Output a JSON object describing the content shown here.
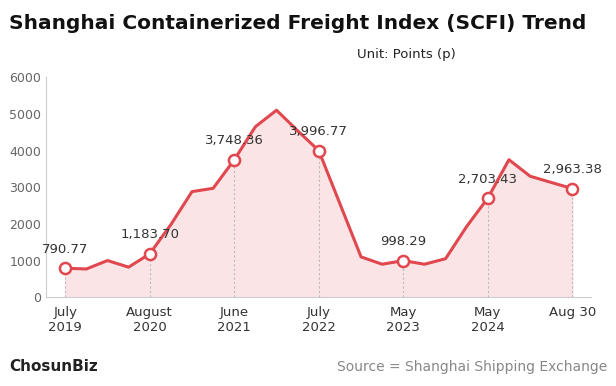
{
  "chart_data": {
    "type": "line",
    "title": "Shanghai Containerized Freight Index (SCFI) Trend",
    "subtitle": "Unit: Points (p)",
    "source": "Source = Shanghai Shipping Exchange",
    "logo": "ChosunBiz",
    "categories": [
      "July\n2019",
      null,
      null,
      null,
      "August\n2020",
      null,
      null,
      null,
      "June\n2021",
      null,
      null,
      null,
      "July\n2022",
      null,
      null,
      null,
      "May\n2023",
      null,
      null,
      null,
      "May\n2024",
      null,
      null,
      null,
      "Aug 30"
    ],
    "values": [
      790.77,
      770,
      1000,
      820,
      1183.7,
      1980,
      2880,
      2970,
      3748.36,
      4650,
      5100,
      4540,
      3996.77,
      2550,
      1100,
      900,
      998.29,
      900,
      1050,
      1930,
      2703.43,
      3750,
      3300,
      3130,
      2963.38
    ],
    "value_labels": [
      "790.77",
      null,
      null,
      null,
      "1,183.70",
      null,
      null,
      null,
      "3,748.36",
      null,
      null,
      null,
      "3,996.77",
      null,
      null,
      null,
      "998.29",
      null,
      null,
      null,
      "2,703.43",
      null,
      null,
      null,
      "2,963.38"
    ],
    "color": "#e0474f",
    "marker": "circle",
    "ylim": [
      0,
      6000
    ],
    "yticks": [
      0,
      1000,
      2000,
      3000,
      4000,
      5000,
      6000
    ],
    "grid": false,
    "data_labels": true
  }
}
